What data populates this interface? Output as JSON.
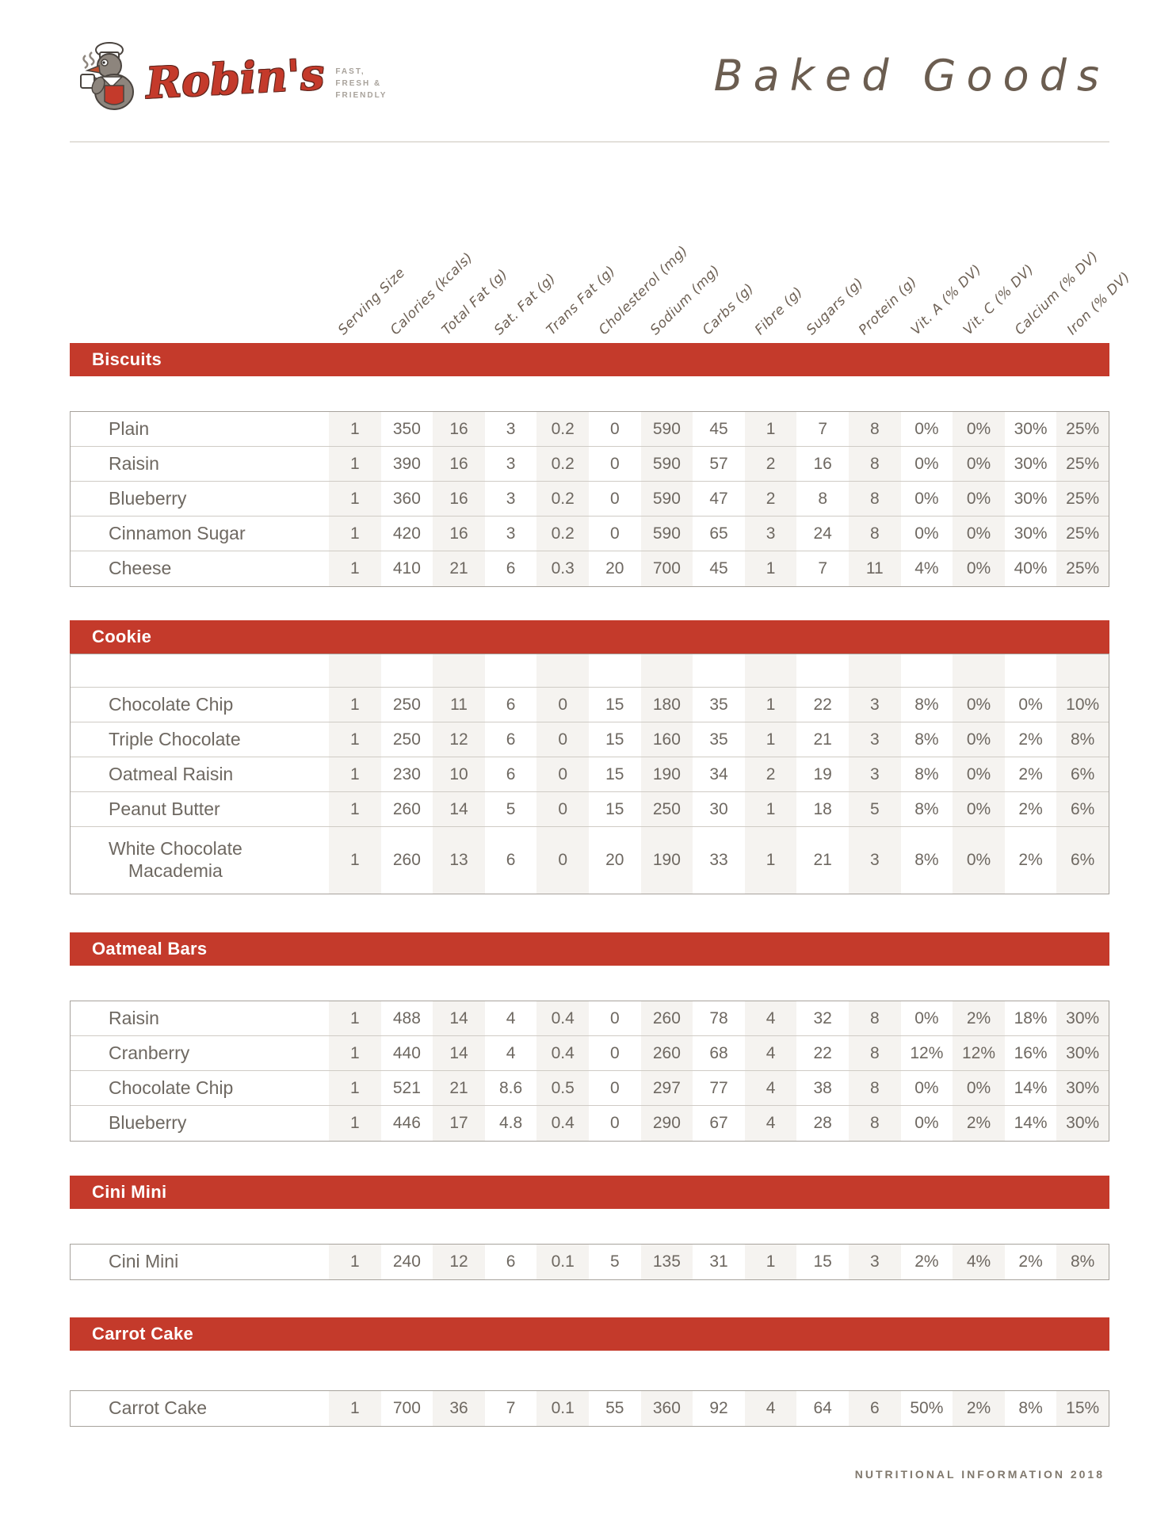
{
  "brand": {
    "name": "Robin's",
    "tagline": [
      "FAST,",
      "FRESH &",
      "FRIENDLY"
    ],
    "title": "Baked Goods"
  },
  "colors": {
    "brand_red": "#c43a2b",
    "handwriting_brown": "#6d6054",
    "body_text": "#6e6861",
    "column_shading": "#f5f3f0"
  },
  "columns": [
    "Serving Size",
    "Calories (kcals)",
    "Total Fat (g)",
    "Sat. Fat (g)",
    "Trans Fat (g)",
    "Cholesterol (mg)",
    "Sodium (mg)",
    "Carbs (g)",
    "Fibre (g)",
    "Sugars (g)",
    "Protein (g)",
    "Vit. A (% DV)",
    "Vit. C (% DV)",
    "Calcium (% DV)",
    "Iron (% DV)"
  ],
  "sections": [
    {
      "title": "Biscuits",
      "leading_empty_row": false,
      "rows": [
        {
          "name": "Plain",
          "values": [
            "1",
            "350",
            "16",
            "3",
            "0.2",
            "0",
            "590",
            "45",
            "1",
            "7",
            "8",
            "0%",
            "0%",
            "30%",
            "25%"
          ]
        },
        {
          "name": "Raisin",
          "values": [
            "1",
            "390",
            "16",
            "3",
            "0.2",
            "0",
            "590",
            "57",
            "2",
            "16",
            "8",
            "0%",
            "0%",
            "30%",
            "25%"
          ]
        },
        {
          "name": "Blueberry",
          "values": [
            "1",
            "360",
            "16",
            "3",
            "0.2",
            "0",
            "590",
            "47",
            "2",
            "8",
            "8",
            "0%",
            "0%",
            "30%",
            "25%"
          ]
        },
        {
          "name": "Cinnamon Sugar",
          "values": [
            "1",
            "420",
            "16",
            "3",
            "0.2",
            "0",
            "590",
            "65",
            "3",
            "24",
            "8",
            "0%",
            "0%",
            "30%",
            "25%"
          ]
        },
        {
          "name": "Cheese",
          "values": [
            "1",
            "410",
            "21",
            "6",
            "0.3",
            "20",
            "700",
            "45",
            "1",
            "7",
            "11",
            "4%",
            "0%",
            "40%",
            "25%"
          ]
        }
      ]
    },
    {
      "title": "Cookie",
      "leading_empty_row": true,
      "rows": [
        {
          "name": "Chocolate Chip",
          "values": [
            "1",
            "250",
            "11",
            "6",
            "0",
            "15",
            "180",
            "35",
            "1",
            "22",
            "3",
            "8%",
            "0%",
            "0%",
            "10%"
          ]
        },
        {
          "name": "Triple Chocolate",
          "values": [
            "1",
            "250",
            "12",
            "6",
            "0",
            "15",
            "160",
            "35",
            "1",
            "21",
            "3",
            "8%",
            "0%",
            "2%",
            "8%"
          ]
        },
        {
          "name": "Oatmeal Raisin",
          "values": [
            "1",
            "230",
            "10",
            "6",
            "0",
            "15",
            "190",
            "34",
            "2",
            "19",
            "3",
            "8%",
            "0%",
            "2%",
            "6%"
          ]
        },
        {
          "name": "Peanut Butter",
          "values": [
            "1",
            "260",
            "14",
            "5",
            "0",
            "15",
            "250",
            "30",
            "1",
            "18",
            "5",
            "8%",
            "0%",
            "2%",
            "6%"
          ]
        },
        {
          "name": "White Chocolate",
          "name_line2": "Macademia",
          "values": [
            "1",
            "260",
            "13",
            "6",
            "0",
            "20",
            "190",
            "33",
            "1",
            "21",
            "3",
            "8%",
            "0%",
            "2%",
            "6%"
          ]
        }
      ]
    },
    {
      "title": "Oatmeal Bars",
      "leading_empty_row": false,
      "rows": [
        {
          "name": "Raisin",
          "values": [
            "1",
            "488",
            "14",
            "4",
            "0.4",
            "0",
            "260",
            "78",
            "4",
            "32",
            "8",
            "0%",
            "2%",
            "18%",
            "30%"
          ]
        },
        {
          "name": "Cranberry",
          "values": [
            "1",
            "440",
            "14",
            "4",
            "0.4",
            "0",
            "260",
            "68",
            "4",
            "22",
            "8",
            "12%",
            "12%",
            "16%",
            "30%"
          ]
        },
        {
          "name": "Chocolate Chip",
          "values": [
            "1",
            "521",
            "21",
            "8.6",
            "0.5",
            "0",
            "297",
            "77",
            "4",
            "38",
            "8",
            "0%",
            "0%",
            "14%",
            "30%"
          ]
        },
        {
          "name": "Blueberry",
          "values": [
            "1",
            "446",
            "17",
            "4.8",
            "0.4",
            "0",
            "290",
            "67",
            "4",
            "28",
            "8",
            "0%",
            "2%",
            "14%",
            "30%"
          ]
        }
      ]
    },
    {
      "title": "Cini Mini",
      "leading_empty_row": false,
      "rows": [
        {
          "name": "Cini Mini",
          "values": [
            "1",
            "240",
            "12",
            "6",
            "0.1",
            "5",
            "135",
            "31",
            "1",
            "15",
            "3",
            "2%",
            "4%",
            "2%",
            "8%"
          ]
        }
      ]
    },
    {
      "title": "Carrot Cake",
      "leading_empty_row": false,
      "rows": [
        {
          "name": "Carrot Cake",
          "values": [
            "1",
            "700",
            "36",
            "7",
            "0.1",
            "55",
            "360",
            "92",
            "4",
            "64",
            "6",
            "50%",
            "2%",
            "8%",
            "15%"
          ]
        }
      ]
    }
  ],
  "footer": "NUTRITIONAL INFORMATION 2018"
}
